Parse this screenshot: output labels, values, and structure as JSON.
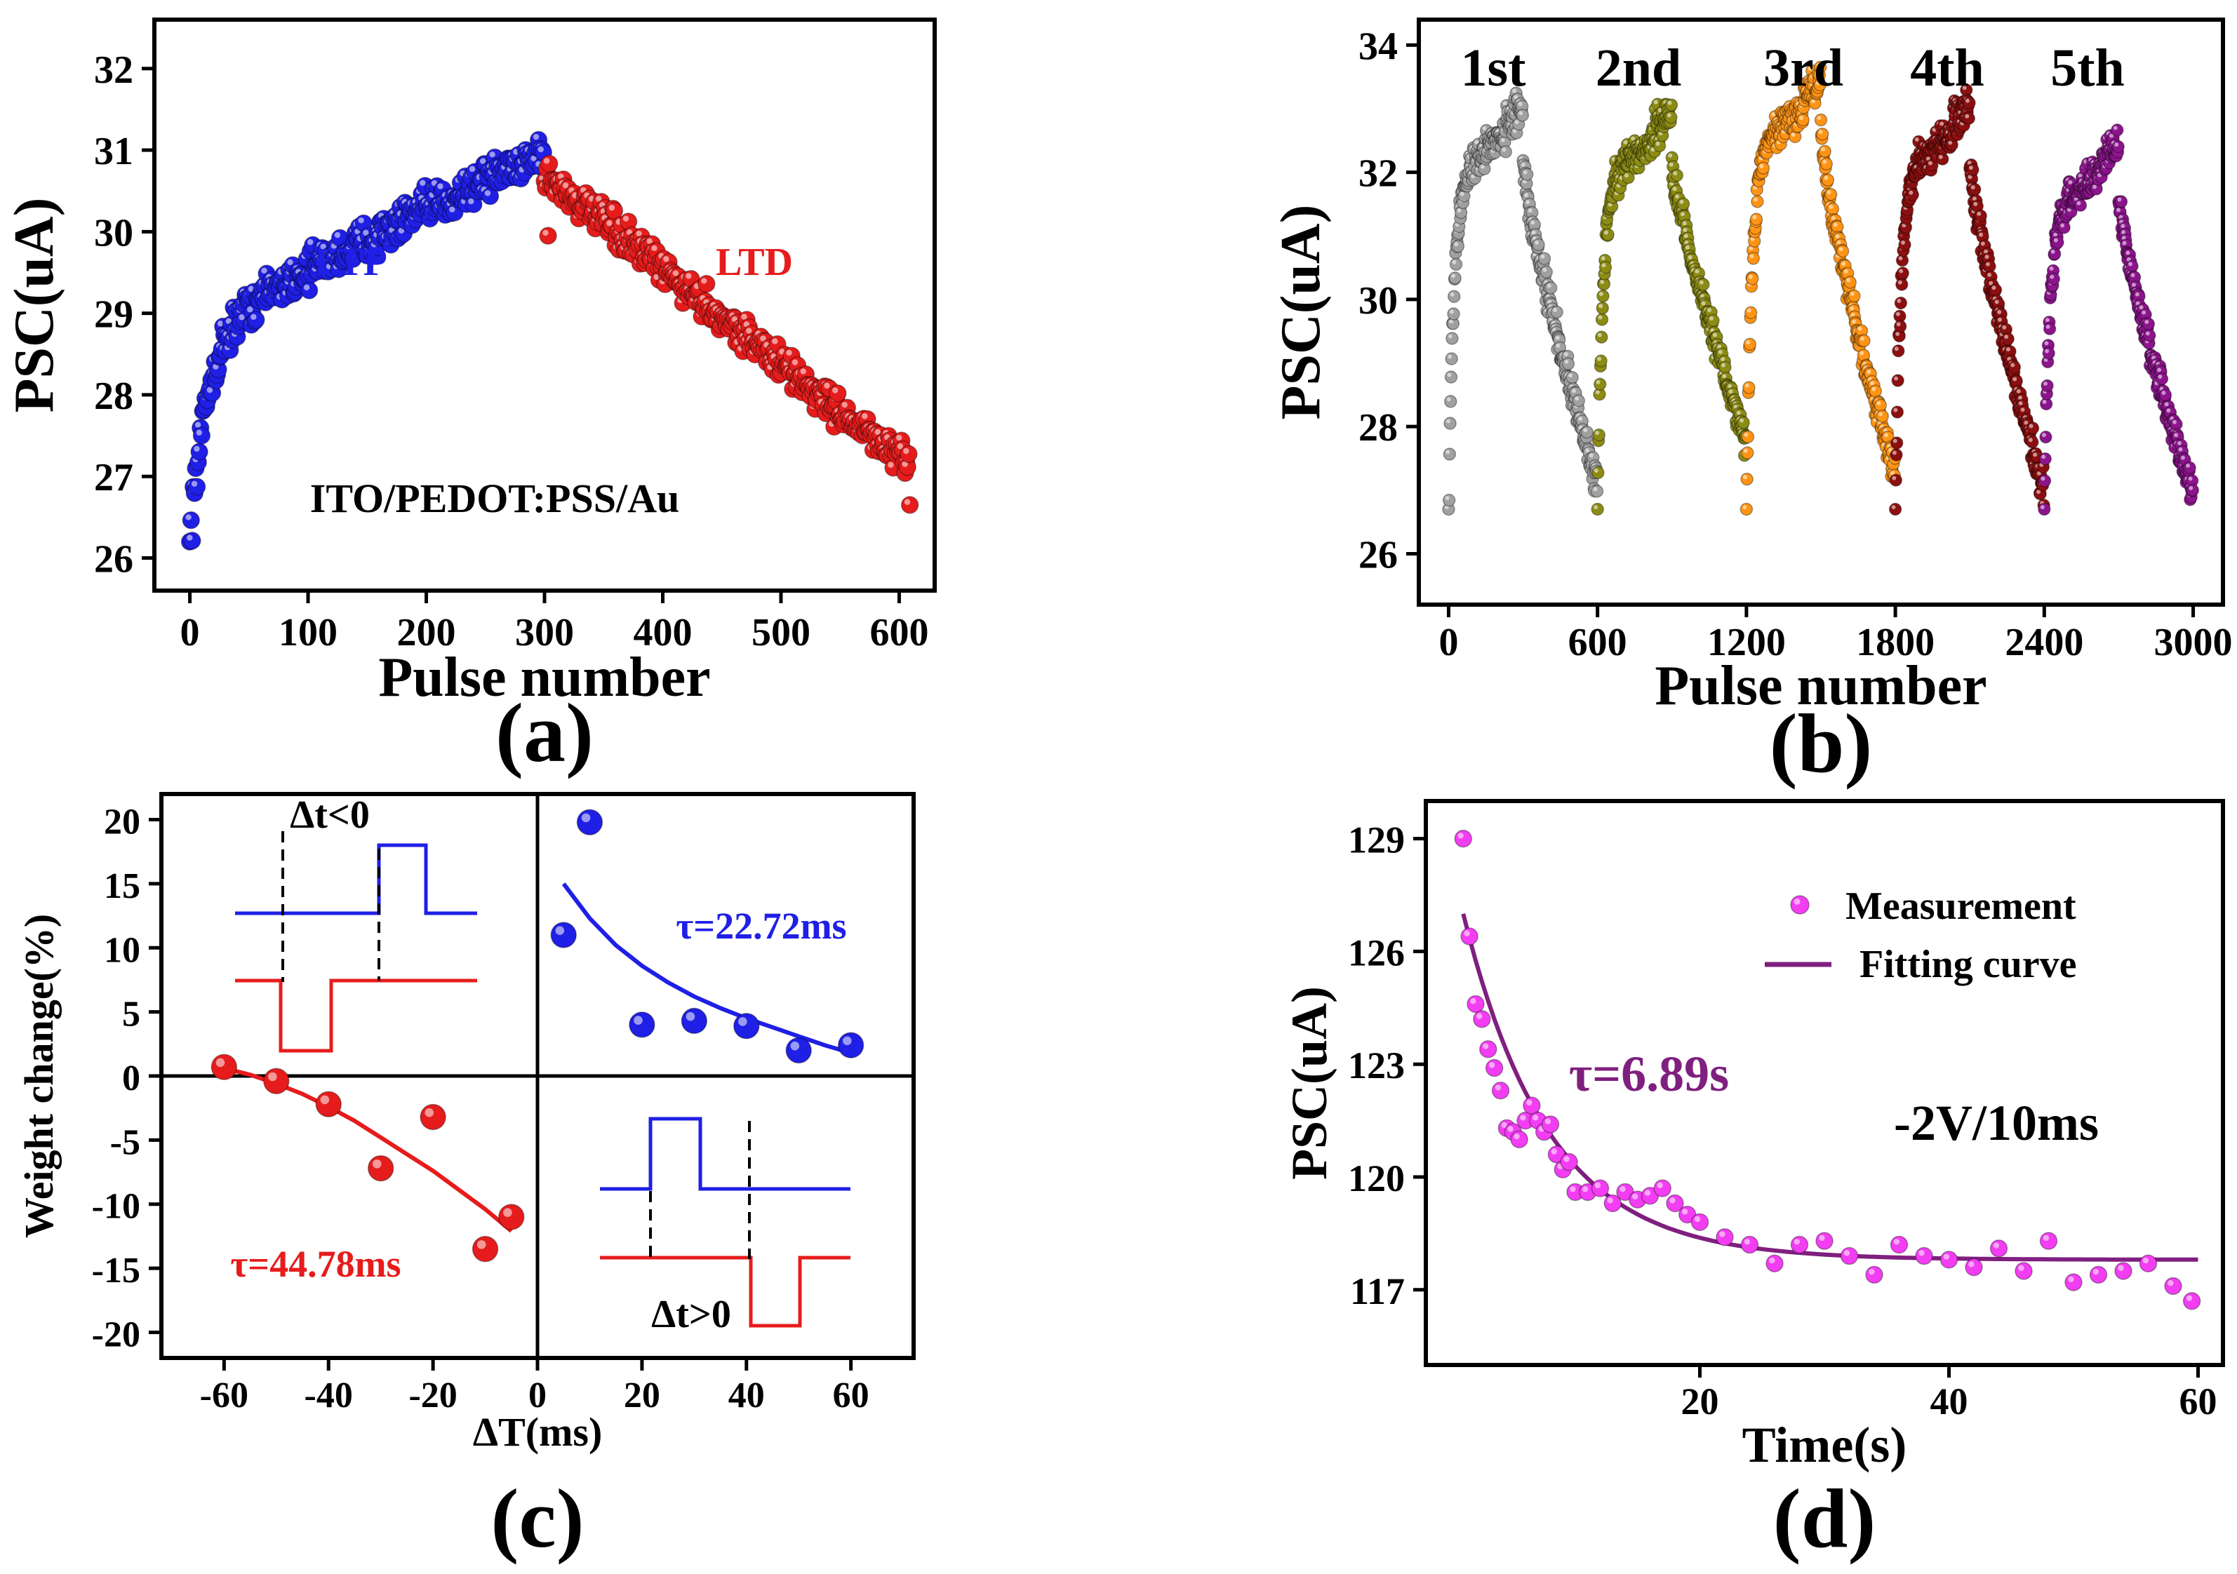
{
  "chart_data": [
    {
      "id": "a",
      "type": "scatter",
      "panel_label": "(a)",
      "title": "",
      "xlabel": "Pulse number",
      "ylabel": "PSC(uA)",
      "xlim": [
        -30,
        630
      ],
      "ylim": [
        25.6,
        32.6
      ],
      "xticks": [
        0,
        100,
        200,
        300,
        400,
        500,
        600
      ],
      "yticks": [
        26,
        27,
        28,
        29,
        30,
        31,
        32
      ],
      "annotations": [
        {
          "text": "LTP",
          "color": "#1f1fe6"
        },
        {
          "text": "LTD",
          "color": "#e61c1c"
        },
        {
          "text": "ITO/PEDOT:PSS/Au",
          "color": "#000000"
        }
      ],
      "series": [
        {
          "name": "LTP",
          "color": "#1f1fe6",
          "x_range": [
            0,
            300
          ],
          "model": "26.2 + 2.6*(1-exp(-x/15)) + 2.2*(x/300)",
          "noise": 0.35,
          "count": 300
        },
        {
          "name": "LTD",
          "color": "#e61c1c",
          "x_range": [
            300,
            610
          ],
          "model": "30.7 - 3.6*((x-300)/310)",
          "noise": 0.3,
          "count": 310
        }
      ]
    },
    {
      "id": "b",
      "type": "scatter",
      "panel_label": "(b)",
      "title": "",
      "xlabel": "Pulse number",
      "ylabel": "PSC(uA)",
      "xlim": [
        -120,
        3120
      ],
      "ylim": [
        25.2,
        34.4
      ],
      "xticks": [
        0,
        600,
        1200,
        1800,
        2400,
        3000
      ],
      "yticks": [
        26,
        28,
        30,
        32,
        34
      ],
      "cycle_labels": [
        "1st",
        "2nd",
        "3rd",
        "4th",
        "5th"
      ],
      "series": [
        {
          "name": "1st",
          "color": "#a0a0a0",
          "x_start": 0,
          "peak": 32.8,
          "end": 27.1
        },
        {
          "name": "2nd",
          "color": "#8c8c14",
          "x_start": 600,
          "peak": 32.7,
          "end": 27.8
        },
        {
          "name": "3rd",
          "color": "#ff9414",
          "x_start": 1200,
          "peak": 33.2,
          "end": 27.2
        },
        {
          "name": "4th",
          "color": "#8c0f0f",
          "x_start": 1800,
          "peak": 32.8,
          "end": 27.0
        },
        {
          "name": "5th",
          "color": "#8c148c",
          "x_start": 2400,
          "peak": 32.2,
          "end": 26.9
        }
      ]
    },
    {
      "id": "c",
      "type": "scatter",
      "panel_label": "(c)",
      "title": "",
      "xlabel": "ΔT(ms)",
      "ylabel": "Weight change(%)",
      "xlim": [
        -72,
        72
      ],
      "ylim": [
        -22,
        22
      ],
      "xticks": [
        -60,
        -40,
        -20,
        0,
        20,
        40,
        60
      ],
      "yticks": [
        -20,
        -15,
        -10,
        -5,
        0,
        5,
        10,
        15,
        20
      ],
      "annotations": [
        {
          "text": "Δt<0",
          "color": "#000000"
        },
        {
          "text": "Δt>0",
          "color": "#000000"
        },
        {
          "text": "τ=22.72ms",
          "color": "#1f1fe6"
        },
        {
          "text": "τ=44.78ms",
          "color": "#e61c1c"
        }
      ],
      "series": [
        {
          "name": "positive",
          "color": "#1f1fe6",
          "x": [
            5,
            10,
            20,
            30,
            40,
            50,
            60
          ],
          "y": [
            11,
            19.8,
            4,
            4.3,
            3.9,
            2,
            2.4
          ],
          "fit": {
            "x": [
              5,
              10,
              15,
              20,
              25,
              30,
              35,
              40,
              45,
              50,
              55,
              60
            ],
            "y": [
              15,
              12.3,
              10.2,
              8.6,
              7.3,
              6.2,
              5.3,
              4.5,
              3.8,
              3.1,
              2.4,
              1.8
            ]
          }
        },
        {
          "name": "negative",
          "color": "#e61c1c",
          "x": [
            -60,
            -50,
            -40,
            -30,
            -20,
            -10,
            -5
          ],
          "y": [
            0.7,
            -0.4,
            -2.2,
            -7.2,
            -3.2,
            -13.5,
            -11
          ],
          "fit": {
            "x": [
              -60,
              -55,
              -50,
              -45,
              -40,
              -35,
              -30,
              -25,
              -20,
              -15,
              -10,
              -5
            ],
            "y": [
              0.6,
              0.1,
              -0.6,
              -1.4,
              -2.4,
              -3.5,
              -4.8,
              -6.1,
              -7.4,
              -8.9,
              -10.4,
              -12.1
            ]
          }
        }
      ]
    },
    {
      "id": "d",
      "type": "scatter",
      "panel_label": "(d)",
      "title": "",
      "xlabel": "Time(s)",
      "ylabel": "PSC(uA)",
      "xlim": [
        -2,
        62
      ],
      "ylim": [
        115,
        130
      ],
      "xticks": [
        20,
        40,
        60
      ],
      "yticks": [
        117,
        120,
        123,
        126,
        129
      ],
      "legend": {
        "position": "top-right",
        "entries": [
          "Measurement",
          "Fitting curve"
        ]
      },
      "annotations": [
        {
          "text": "τ=6.89s",
          "color": "#7f1f7f"
        },
        {
          "text": "-2V/10ms",
          "color": "#000000"
        }
      ],
      "series": [
        {
          "name": "Measurement",
          "color": "#f23df2",
          "x": [
            1,
            1.5,
            2,
            2.5,
            3,
            3.5,
            4,
            4.5,
            5,
            5.5,
            6,
            6.5,
            7,
            7.5,
            8,
            8.5,
            9,
            9.5,
            10,
            11,
            12,
            13,
            14,
            15,
            16,
            17,
            18,
            19,
            20,
            22,
            24,
            26,
            28,
            30,
            32,
            34,
            36,
            38,
            40,
            42,
            44,
            46,
            48,
            50,
            52,
            54,
            56,
            58,
            59.5
          ],
          "y": [
            129,
            126.4,
            124.6,
            124.2,
            123.4,
            122.9,
            122.3,
            121.3,
            121.2,
            121.0,
            121.5,
            121.9,
            121.5,
            121.2,
            121.4,
            120.6,
            120.2,
            120.4,
            119.6,
            119.6,
            119.7,
            119.3,
            119.6,
            119.4,
            119.5,
            119.7,
            119.3,
            119.0,
            118.8,
            118.4,
            118.2,
            117.7,
            118.2,
            118.3,
            117.9,
            117.4,
            118.2,
            117.9,
            117.8,
            117.6,
            118.1,
            117.5,
            118.3,
            117.2,
            117.4,
            117.5,
            117.7,
            117.1,
            116.7
          ]
        },
        {
          "name": "Fitting curve",
          "color": "#7f1f7f",
          "model": "117.8 + 9.2*exp(-(x-1)/6.89)",
          "x_range": [
            1,
            60
          ]
        }
      ]
    }
  ]
}
